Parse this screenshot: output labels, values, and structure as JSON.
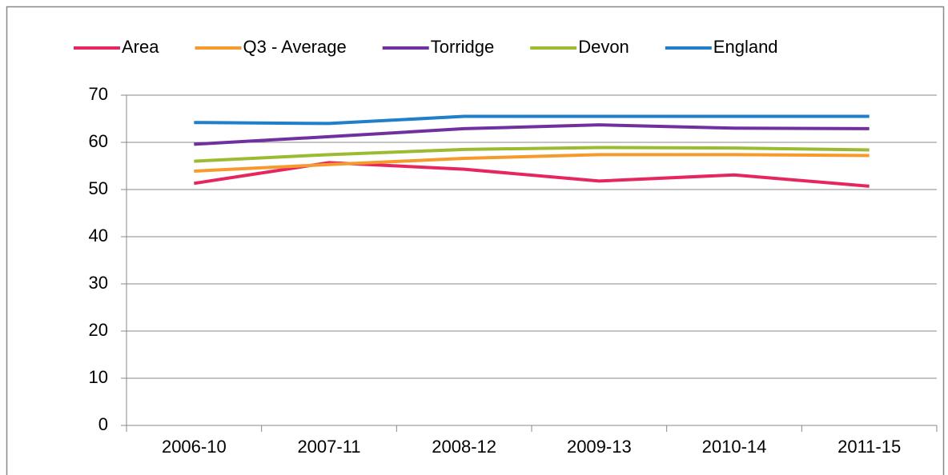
{
  "chart_data": {
    "type": "line",
    "categories": [
      "2006-10",
      "2007-11",
      "2008-12",
      "2009-13",
      "2010-14",
      "2011-15"
    ],
    "series": [
      {
        "name": "Area",
        "color": "#e6265e",
        "values": [
          51.3,
          55.7,
          54.3,
          51.8,
          53.1,
          50.7
        ]
      },
      {
        "name": "Q3 - Average",
        "color": "#f79a2e",
        "values": [
          53.9,
          55.3,
          56.6,
          57.4,
          57.4,
          57.2
        ]
      },
      {
        "name": "Torridge",
        "color": "#7030a0",
        "values": [
          59.6,
          61.2,
          62.9,
          63.7,
          63.0,
          62.9
        ]
      },
      {
        "name": "Devon",
        "color": "#9bbb30",
        "values": [
          56.0,
          57.4,
          58.5,
          58.9,
          58.8,
          58.4
        ]
      },
      {
        "name": "England",
        "color": "#1f7fc8",
        "values": [
          64.2,
          64.0,
          65.5,
          65.5,
          65.5,
          65.5
        ]
      }
    ],
    "ylim": [
      0,
      70
    ],
    "yticks": [
      0,
      10,
      20,
      30,
      40,
      50,
      60,
      70
    ],
    "grid": true,
    "legend": "top"
  }
}
